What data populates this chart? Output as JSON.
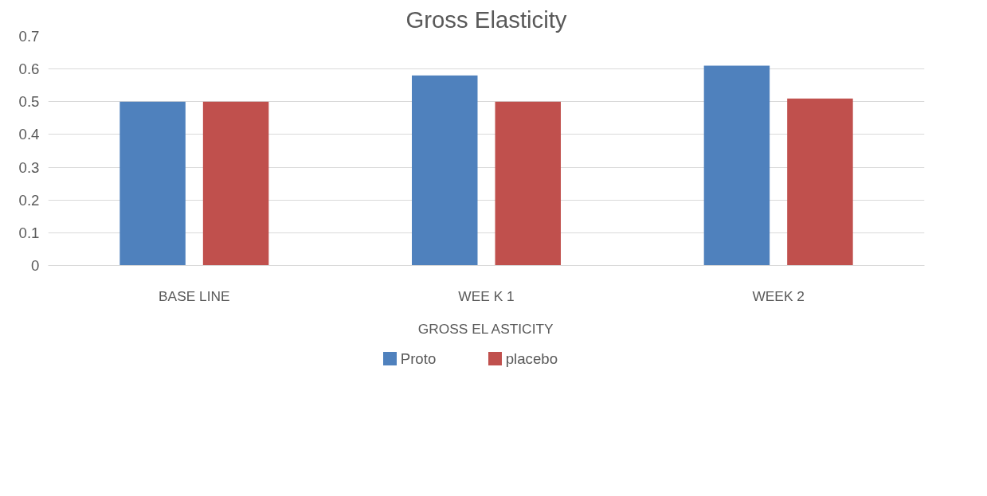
{
  "chart_data": {
    "type": "bar",
    "title": "Gross Elasticity",
    "xlabel": "GROSS EL ASTICITY",
    "categories": [
      "BASE LINE",
      "WEE K 1",
      "WEEK 2"
    ],
    "series": [
      {
        "name": "Proto",
        "color": "#4f81bd",
        "values": [
          0.5,
          0.58,
          0.61
        ]
      },
      {
        "name": "placebo",
        "color": "#c0504d",
        "values": [
          0.5,
          0.5,
          0.51
        ]
      }
    ],
    "ylim": [
      0,
      0.7
    ],
    "yticks": [
      0,
      0.1,
      0.2,
      0.3,
      0.4,
      0.5,
      0.6,
      0.7
    ],
    "grid": "y",
    "legend": "bottom"
  }
}
